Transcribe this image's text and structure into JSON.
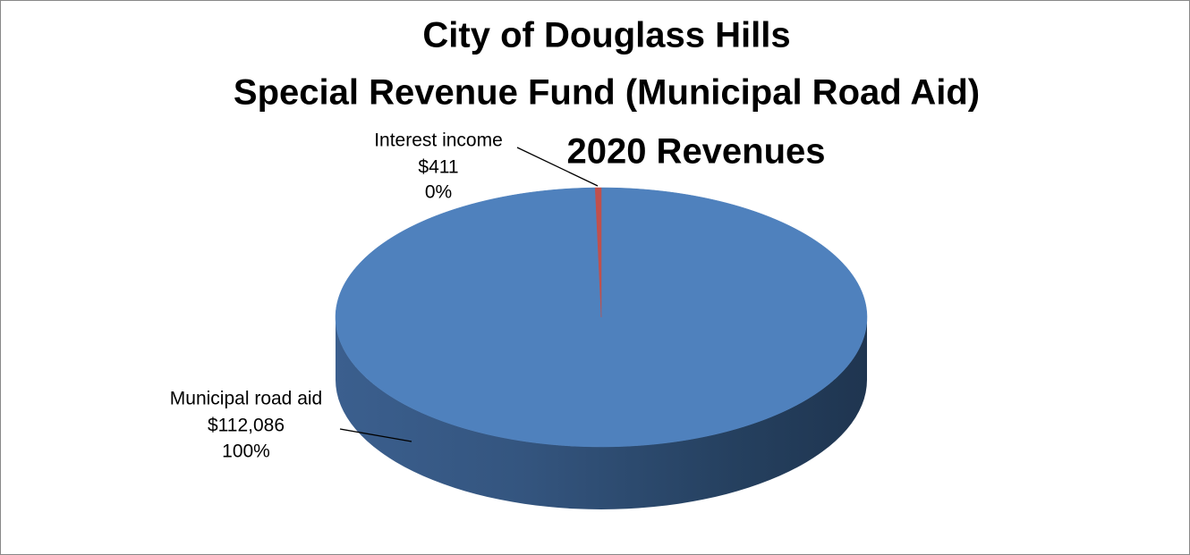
{
  "chart_data": {
    "type": "pie3d",
    "title": [
      "City of Douglass Hills",
      "Special Revenue Fund (Municipal Road Aid)",
      "2020 Revenues"
    ],
    "categories": [
      "Municipal road aid",
      "Interest income"
    ],
    "values": [
      112086,
      411
    ],
    "value_labels": [
      "$112,086",
      "$411"
    ],
    "percents": [
      100,
      0
    ],
    "percent_labels": [
      "100%",
      "0%"
    ],
    "colors": [
      "#4f81bd",
      "#c0504d"
    ]
  }
}
